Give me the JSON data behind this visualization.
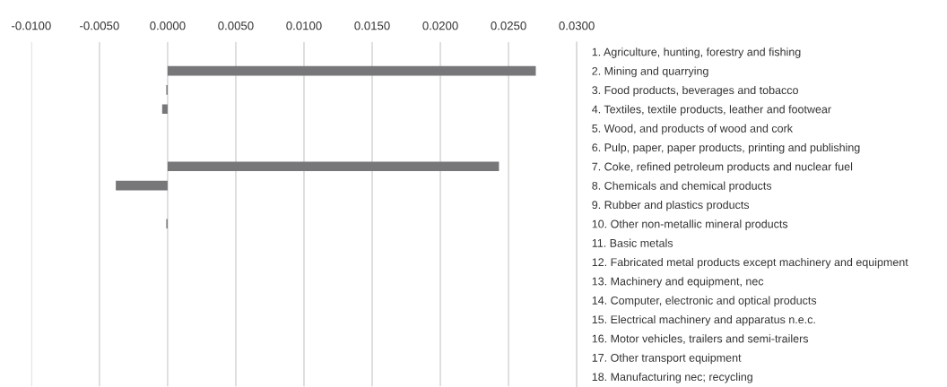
{
  "chart_data": {
    "type": "bar",
    "orientation": "horizontal",
    "categories": [
      "1. Agriculture, hunting, forestry and fishing",
      "2. Mining and quarrying",
      "3. Food products, beverages and tobacco",
      "4. Textiles, textile products, leather and footwear",
      "5. Wood, and products of wood and cork",
      "6. Pulp, paper, paper products, printing and publishing",
      "7. Coke, refined petroleum products and nuclear fuel",
      "8. Chemicals and chemical products",
      "9. Rubber and plastics products",
      "10. Other non-metallic mineral products",
      "11. Basic metals",
      "12. Fabricated metal products except machinery and equipment",
      "13. Machinery and equipment, nec",
      "14. Computer, electronic and optical products",
      "15. Electrical machinery and apparatus n.e.c.",
      "16. Motor vehicles, trailers and semi-trailers",
      "17. Other transport equipment",
      "18. Manufacturing nec; recycling"
    ],
    "values": [
      0,
      0.027,
      -0.0001,
      -0.0004,
      0,
      0,
      0.0243,
      -0.0038,
      0,
      -0.0001,
      0,
      0,
      0,
      0,
      0,
      0,
      0,
      0
    ],
    "color": "#77777a",
    "xlim": [
      -0.01,
      0.03
    ],
    "xticks": [
      {
        "value": -0.01,
        "label": "-0.0100"
      },
      {
        "value": -0.005,
        "label": "-0.0050"
      },
      {
        "value": 0,
        "label": "0.0000"
      },
      {
        "value": 0.005,
        "label": "0.0050"
      },
      {
        "value": 0.01,
        "label": "0.0100"
      },
      {
        "value": 0.015,
        "label": "0.0150"
      },
      {
        "value": 0.02,
        "label": "0.0200"
      },
      {
        "value": 0.025,
        "label": "0.0250"
      },
      {
        "value": 0.03,
        "label": "0.0300"
      }
    ],
    "grid": "x"
  }
}
